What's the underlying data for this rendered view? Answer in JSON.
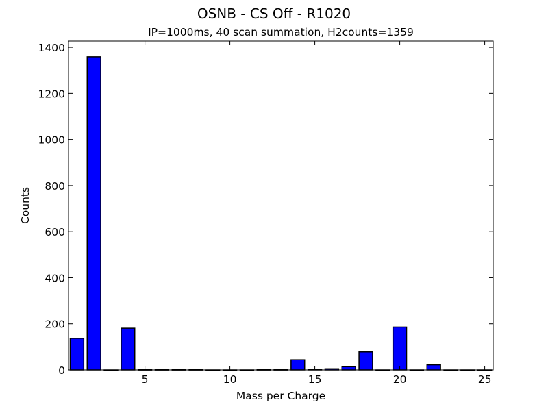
{
  "chart_data": {
    "type": "bar",
    "title": "OSNB - CS Off - R1020",
    "subtitle": "IP=1000ms, 40 scan summation, H2counts=1359",
    "xlabel": "Mass per Charge",
    "ylabel": "Counts",
    "x": [
      1,
      2,
      3,
      4,
      5,
      6,
      7,
      8,
      9,
      10,
      11,
      12,
      13,
      14,
      15,
      16,
      17,
      18,
      19,
      20,
      21,
      22,
      23,
      24,
      25
    ],
    "values": [
      137,
      1359,
      0,
      181,
      1,
      1,
      1,
      1,
      0,
      0,
      0,
      1,
      1,
      44,
      2,
      5,
      14,
      78,
      0,
      186,
      0,
      22,
      0,
      0,
      0
    ],
    "bar_width": 0.8,
    "bar_color": "#0000ff",
    "xlim": [
      0.5,
      25.5
    ],
    "ylim": [
      0,
      1427
    ],
    "xticks": [
      5,
      10,
      15,
      20,
      25
    ],
    "yticks": [
      0,
      200,
      400,
      600,
      800,
      1000,
      1200,
      1400
    ],
    "grid": false,
    "legend": null
  }
}
